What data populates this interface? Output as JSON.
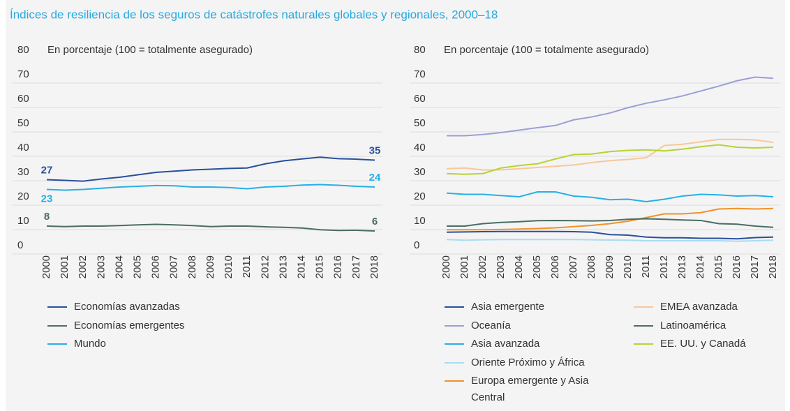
{
  "title": "Índices de resiliencia de los seguros de catástrofes naturales globales y regionales, 2000–18",
  "chart_data": [
    {
      "type": "line",
      "subtitle": "En porcentaje (100 = totalmente asegurado)",
      "x": [
        2000,
        2001,
        2002,
        2003,
        2004,
        2005,
        2006,
        2007,
        2008,
        2009,
        2010,
        2011,
        2012,
        2013,
        2014,
        2015,
        2016,
        2017,
        2018
      ],
      "ylim": [
        0,
        80
      ],
      "yticks": [
        0,
        10,
        20,
        30,
        40,
        50,
        60,
        70,
        80
      ],
      "grid": true,
      "data_labels": "ends",
      "series": [
        {
          "name": "Economías avanzadas",
          "color": "#2a4f9c",
          "values": [
            27,
            26.7,
            26.4,
            27.3,
            28,
            29,
            30,
            30.5,
            31,
            31.3,
            31.6,
            31.8,
            33.5,
            34.7,
            35.5,
            36.2,
            35.6,
            35.4,
            35
          ]
        },
        {
          "name": "Economías emergentes",
          "color": "#4a6d62",
          "values": [
            8,
            7.8,
            8,
            8,
            8.2,
            8.5,
            8.7,
            8.5,
            8.2,
            7.8,
            8,
            8,
            7.7,
            7.5,
            7.2,
            6.5,
            6.2,
            6.3,
            6
          ]
        },
        {
          "name": "Mundo",
          "color": "#26b0e6",
          "values": [
            23,
            22.7,
            23,
            23.5,
            24,
            24.3,
            24.6,
            24.5,
            24,
            24,
            23.8,
            23.3,
            24,
            24.3,
            24.8,
            25,
            24.7,
            24.3,
            24
          ]
        }
      ]
    },
    {
      "type": "line",
      "subtitle": "En porcentaje (100 = totalmente asegurado)",
      "x": [
        2000,
        2001,
        2002,
        2003,
        2004,
        2005,
        2006,
        2007,
        2008,
        2009,
        2010,
        2011,
        2012,
        2013,
        2014,
        2015,
        2016,
        2017,
        2018
      ],
      "ylim": [
        0,
        80
      ],
      "yticks": [
        0,
        10,
        20,
        30,
        40,
        50,
        60,
        70,
        80
      ],
      "grid": true,
      "series": [
        {
          "name": "Asia emergente",
          "color": "#2a4f9c",
          "values": [
            5.5,
            5.6,
            5.7,
            5.8,
            5.8,
            5.8,
            5.8,
            5.7,
            5.5,
            4.5,
            4.3,
            3.5,
            3.2,
            3.2,
            3,
            3,
            2.8,
            3.3,
            3.5
          ]
        },
        {
          "name": "Oceanía",
          "color": "#9b9fd6",
          "values": [
            45,
            45,
            45.5,
            46.3,
            47.3,
            48.3,
            49.2,
            51.5,
            52.7,
            54.3,
            56.5,
            58.3,
            59.7,
            61.3,
            63.3,
            65.3,
            67.5,
            69,
            68.5
          ]
        },
        {
          "name": "Asia avanzada",
          "color": "#26b0e6",
          "values": [
            21.5,
            21,
            21,
            20.5,
            20,
            22,
            22,
            20.3,
            19.8,
            18.8,
            19,
            18,
            19,
            20.3,
            21,
            20.8,
            20.3,
            20.5,
            20
          ]
        },
        {
          "name": "Oriente Próximo y África",
          "color": "#a8dcf2",
          "values": [
            2.5,
            2.2,
            2.4,
            2.5,
            2.5,
            2.5,
            2.5,
            2.5,
            2.4,
            2.3,
            2.2,
            2,
            2,
            2,
            2,
            2,
            1.8,
            2,
            2.2
          ]
        },
        {
          "name": "Europa emergente y Asia Central",
          "color": "#f0922b",
          "values": [
            6.5,
            6.5,
            6.5,
            6.6,
            6.8,
            7,
            7.3,
            7.8,
            8.3,
            9,
            10,
            11.5,
            13,
            13,
            13.5,
            15,
            15.2,
            15,
            15.2
          ]
        },
        {
          "name": "EMEA avanzada",
          "color": "#f7c89a",
          "values": [
            31.5,
            31.8,
            31,
            31,
            31.5,
            32,
            32.5,
            33,
            34,
            34.8,
            35.3,
            36,
            41,
            41.5,
            42.5,
            43.5,
            43.5,
            43.3,
            42.3
          ]
        },
        {
          "name": "Latinoamérica",
          "color": "#4a6d62",
          "values": [
            8,
            8,
            9,
            9.5,
            9.8,
            10.2,
            10.3,
            10.2,
            10.1,
            10.3,
            10.8,
            11,
            10.8,
            10.5,
            10.3,
            9,
            8.8,
            8,
            7.5
          ]
        },
        {
          "name": "EE. UU. y Canadá",
          "color": "#b5d334",
          "values": [
            29.5,
            29.2,
            29.5,
            31.8,
            32.8,
            33.5,
            35.5,
            37.3,
            37.5,
            38.5,
            39,
            39.2,
            38.8,
            39.5,
            40.5,
            41.3,
            40.3,
            40,
            40.3
          ]
        }
      ]
    }
  ]
}
